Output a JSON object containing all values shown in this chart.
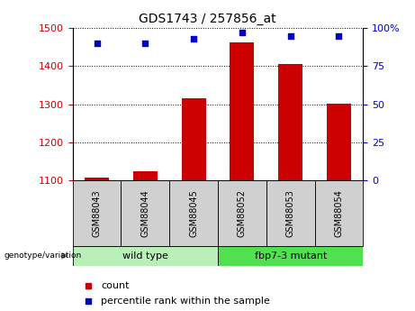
{
  "title": "GDS1743 / 257856_at",
  "samples": [
    "GSM88043",
    "GSM88044",
    "GSM88045",
    "GSM88052",
    "GSM88053",
    "GSM88054"
  ],
  "count_values": [
    1108,
    1123,
    1315,
    1462,
    1405,
    1302
  ],
  "percentile_values": [
    90,
    90,
    93,
    97,
    95,
    95
  ],
  "ylim_left": [
    1100,
    1500
  ],
  "ylim_right": [
    0,
    100
  ],
  "yticks_left": [
    1100,
    1200,
    1300,
    1400,
    1500
  ],
  "yticks_right": [
    0,
    25,
    50,
    75,
    100
  ],
  "bar_color": "#cc0000",
  "dot_color": "#0000cc",
  "bar_width": 0.5,
  "plot_bg_color": "#ffffff",
  "label_color_left": "#cc0000",
  "label_color_right": "#0000cc",
  "wt_label": "wild type",
  "mut_label": "fbp7-3 mutant",
  "wt_color": "#b8f0b8",
  "mut_color": "#50e050",
  "sample_box_color": "#d0d0d0",
  "genotype_label": "genotype/variation",
  "legend_count": "count",
  "legend_percentile": "percentile rank within the sample",
  "title_fontsize": 10,
  "axis_fontsize": 8,
  "sample_fontsize": 7,
  "group_fontsize": 8,
  "legend_fontsize": 8
}
